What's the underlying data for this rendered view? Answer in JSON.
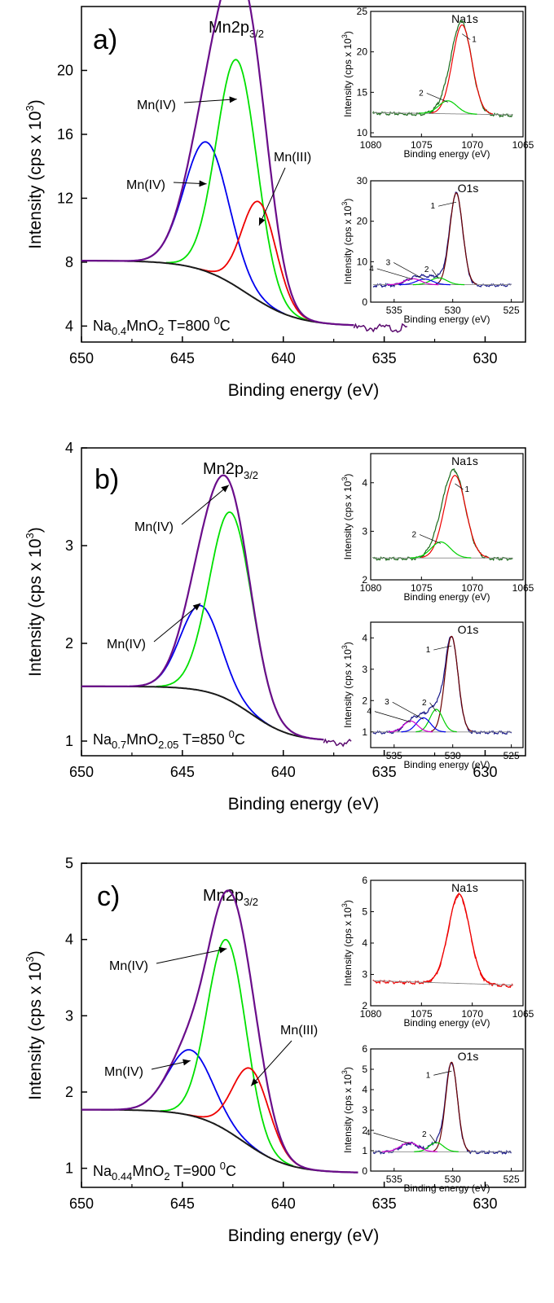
{
  "figure": {
    "colors": {
      "axis": "#000000",
      "background": "#1a1a1a",
      "envelope": "#6a0d8a",
      "mn_iv_low": "#0000ee",
      "mn_iv_high": "#00e000",
      "mn_iii": "#ee0000",
      "noise": "#5a0a6e",
      "o_comp4": "#d000d0",
      "o_comp1": "#6b0000"
    }
  },
  "chart_data": [
    {
      "type": "line",
      "panel": "a)",
      "title": "Mn2p3/2",
      "title_parts": {
        "main": "Mn2p",
        "sub": "3/2"
      },
      "xlabel": "Binding energy (eV)",
      "ylabel": "Intensity (cps x 10",
      "ylabel_sup": "3",
      "ylabel_close": ")",
      "xlim": [
        650,
        628
      ],
      "ylim": [
        3,
        24
      ],
      "xticks": [
        "650",
        "645",
        "640",
        "635",
        "630"
      ],
      "yticks": [
        "4",
        "8",
        "12",
        "16",
        "20"
      ],
      "sample_label": {
        "a": "Na",
        "b": "0.4",
        "c": "MnO",
        "d": "2",
        "e": "   T=800 ",
        "f": "0",
        "g": "C"
      },
      "annotations": [
        {
          "text": "Mn(IV)",
          "target_x": 643.8,
          "target_y": 12.9
        },
        {
          "text": "Mn(IV)",
          "target_x": 642.3,
          "target_y": 18.2
        },
        {
          "text": "Mn(III)",
          "target_x": 641.2,
          "target_y": 10.3
        }
      ],
      "background": {
        "left": 8.1,
        "right": 4.0,
        "center": 641.8,
        "width": 1.25
      },
      "components": [
        {
          "name": "Mn(IV)",
          "center": 643.8,
          "height": 8.1,
          "sigma": 1.1
        },
        {
          "name": "Mn(IV)",
          "center": 642.3,
          "height": 14.2,
          "sigma": 1.0
        },
        {
          "name": "Mn(III)",
          "center": 641.2,
          "height": 6.2,
          "sigma": 0.85
        }
      ],
      "x_range": [
        650,
        636.5
      ],
      "noise_start": 636.5,
      "noise_end": 633.8
    },
    {
      "type": "line",
      "panel": "b)",
      "title": "Mn2p3/2",
      "title_parts": {
        "main": "Mn2p",
        "sub": "3/2"
      },
      "xlabel": "Binding energy (eV)",
      "ylabel": "Intensity (cps x 10",
      "ylabel_sup": "3",
      "ylabel_close": ")",
      "xlim": [
        650,
        628
      ],
      "ylim": [
        0.85,
        4.0
      ],
      "xticks": [
        "650",
        "645",
        "640",
        "635",
        "630"
      ],
      "yticks": [
        "1",
        "2",
        "3",
        "4"
      ],
      "sample_label": {
        "a": "Na",
        "b": "0.7",
        "c": "MnO",
        "d": "2.05",
        "e": "   T=850 ",
        "f": "0",
        "g": "C"
      },
      "annotations": [
        {
          "text": "Mn(IV)",
          "target_x": 642.7,
          "target_y": 3.62
        },
        {
          "text": "Mn(IV)",
          "target_x": 644.1,
          "target_y": 2.41
        }
      ],
      "background": {
        "left": 1.56,
        "right": 1.0,
        "center": 641.6,
        "width": 1.0
      },
      "components": [
        {
          "name": "Mn(IV)",
          "center": 644.1,
          "height": 0.87,
          "sigma": 1.0
        },
        {
          "name": "Mn(IV)",
          "center": 642.6,
          "height": 1.93,
          "sigma": 1.05
        }
      ],
      "x_range": [
        650,
        638.0
      ],
      "noise_start": 638.0,
      "noise_end": 636.6
    },
    {
      "type": "line",
      "panel": "c)",
      "title": "Mn2p3/2",
      "title_parts": {
        "main": "Mn2p",
        "sub": "3/2"
      },
      "xlabel": "Binding energy (eV)",
      "ylabel": "Intensity (cps x 10",
      "ylabel_sup": "3",
      "ylabel_close": ")",
      "xlim": [
        650,
        628
      ],
      "ylim": [
        0.75,
        5.0
      ],
      "xticks": [
        "650",
        "645",
        "640",
        "635",
        "630"
      ],
      "yticks": [
        "1",
        "2",
        "3",
        "4",
        "5"
      ],
      "sample_label": {
        "a": "Na",
        "b": "0.44",
        "c": "MnO",
        "d": "2",
        "e": "   T=900 ",
        "f": "0",
        "g": "C"
      },
      "annotations": [
        {
          "text": "Mn(IV)",
          "target_x": 642.8,
          "target_y": 3.88
        },
        {
          "text": "Mn(IV)",
          "target_x": 644.6,
          "target_y": 2.41
        },
        {
          "text": "Mn(III)",
          "target_x": 641.6,
          "target_y": 2.08
        }
      ],
      "background": {
        "left": 1.77,
        "right": 0.94,
        "center": 642.0,
        "width": 1.15
      },
      "components": [
        {
          "name": "Mn(IV)",
          "center": 644.6,
          "height": 0.86,
          "sigma": 1.1
        },
        {
          "name": "Mn(IV)",
          "center": 642.8,
          "height": 2.5,
          "sigma": 0.95
        },
        {
          "name": "Mn(III)",
          "center": 641.6,
          "height": 1.02,
          "sigma": 0.9
        }
      ],
      "x_range": [
        650,
        636.3
      ],
      "noise_start": 636.3,
      "noise_end": 636.3
    }
  ],
  "insets": [
    {
      "panel": "a)",
      "kind": "na",
      "title": "Na1s",
      "xlabel": "Binding energy (eV)",
      "ylabel": "Intensity (cps x 10",
      "ylabel_sup": "3",
      "ylabel_close": ")",
      "xlim": [
        1080,
        1065
      ],
      "ylim": [
        9.5,
        25
      ],
      "xticks": [
        "1080",
        "1075",
        "1070",
        "1065"
      ],
      "yticks": [
        "10",
        "15",
        "20",
        "25"
      ],
      "base": 12.5,
      "base_slope": -0.02,
      "components": [
        {
          "label": "1",
          "center": 1071.0,
          "height": 11.0,
          "sigma": 0.95,
          "color": "#ee0000"
        },
        {
          "label": "2",
          "center": 1072.4,
          "height": 1.6,
          "sigma": 0.9,
          "color": "#00d000"
        }
      ],
      "peak_labels": [
        "1",
        "2"
      ]
    },
    {
      "panel": "a)",
      "kind": "o",
      "title": "O1s",
      "xlabel": "Binding energy (eV)",
      "ylabel": "Intensity (cps x 10",
      "ylabel_sup": "3",
      "ylabel_close": ")",
      "xlim": [
        537,
        524
      ],
      "ylim": [
        0,
        30
      ],
      "xticks": [
        "535",
        "530",
        "525"
      ],
      "yticks": [
        "0",
        "10",
        "20",
        "30"
      ],
      "base": 4.3,
      "base_slope": 0.0,
      "components": [
        {
          "label": "1",
          "center": 529.7,
          "height": 22.7,
          "sigma": 0.55,
          "color": "#6b0000"
        },
        {
          "label": "2",
          "center": 531.2,
          "height": 1.7,
          "sigma": 0.7,
          "color": "#00d000"
        },
        {
          "label": "3",
          "center": 532.4,
          "height": 1.4,
          "sigma": 0.7,
          "color": "#0000ee"
        },
        {
          "label": "4",
          "center": 533.4,
          "height": 1.5,
          "sigma": 0.7,
          "color": "#d000d0"
        }
      ],
      "peak_labels": [
        "1",
        "2",
        "3",
        "4"
      ]
    },
    {
      "panel": "b)",
      "kind": "na",
      "title": "Na1s",
      "xlabel": "Binding energy (eV)",
      "ylabel": "Intensity (cps x 10",
      "ylabel_sup": "3",
      "ylabel_close": ")",
      "xlim": [
        1080,
        1065
      ],
      "ylim": [
        2.0,
        4.6
      ],
      "xticks": [
        "1080",
        "1075",
        "1070",
        "1065"
      ],
      "yticks": [
        "2",
        "3",
        "4"
      ],
      "base": 2.45,
      "base_slope": 0.0,
      "components": [
        {
          "label": "1",
          "center": 1071.7,
          "height": 1.7,
          "sigma": 1.05,
          "color": "#ee0000"
        },
        {
          "label": "2",
          "center": 1073.1,
          "height": 0.33,
          "sigma": 0.95,
          "color": "#00d000"
        }
      ],
      "peak_labels": [
        "1",
        "2"
      ]
    },
    {
      "panel": "b)",
      "kind": "o",
      "title": "O1s",
      "xlabel": "Binding energy (eV)",
      "ylabel": "Intensity (cps x 10",
      "ylabel_sup": "3",
      "ylabel_close": ")",
      "xlim": [
        537,
        524
      ],
      "ylim": [
        0.5,
        4.5
      ],
      "xticks": [
        "535",
        "530",
        "525"
      ],
      "yticks": [
        "1",
        "2",
        "3",
        "4"
      ],
      "base": 1.0,
      "base_slope": 0.0,
      "components": [
        {
          "label": "1",
          "center": 530.1,
          "height": 3.05,
          "sigma": 0.55,
          "color": "#6b0000"
        },
        {
          "label": "2",
          "center": 531.4,
          "height": 0.72,
          "sigma": 0.55,
          "color": "#00d000"
        },
        {
          "label": "3",
          "center": 532.5,
          "height": 0.45,
          "sigma": 0.6,
          "color": "#0000ee"
        },
        {
          "label": "4",
          "center": 533.6,
          "height": 0.35,
          "sigma": 0.6,
          "color": "#d000d0"
        }
      ],
      "peak_labels": [
        "1",
        "2",
        "3",
        "4"
      ]
    },
    {
      "panel": "c)",
      "kind": "na",
      "title": "Na1s",
      "xlabel": "Binding energy (eV)",
      "ylabel": "Intensity (cps x 10",
      "ylabel_sup": "3",
      "ylabel_close": ")",
      "xlim": [
        1080,
        1065
      ],
      "ylim": [
        2.0,
        6.0
      ],
      "xticks": [
        "1080",
        "1075",
        "1070",
        "1065"
      ],
      "yticks": [
        "2",
        "3",
        "4",
        "5",
        "6"
      ],
      "base": 2.8,
      "base_slope": -0.01,
      "components": [
        {
          "label": "",
          "center": 1071.3,
          "height": 2.85,
          "sigma": 1.05,
          "color": "#ee0000"
        }
      ],
      "peak_labels": []
    },
    {
      "panel": "c)",
      "kind": "o",
      "title": "O1s",
      "xlabel": "Binding energy (eV)",
      "ylabel": "Intensity (cps x 10",
      "ylabel_sup": "3",
      "ylabel_close": ")",
      "xlim": [
        537,
        524
      ],
      "ylim": [
        0,
        6
      ],
      "xticks": [
        "535",
        "530",
        "525"
      ],
      "yticks": [
        "0",
        "1",
        "2",
        "3",
        "4",
        "5",
        "6"
      ],
      "base": 0.95,
      "base_slope": 0.0,
      "components": [
        {
          "label": "1",
          "center": 530.1,
          "height": 4.4,
          "sigma": 0.5,
          "color": "#6b0000"
        },
        {
          "label": "2",
          "center": 531.4,
          "height": 0.45,
          "sigma": 0.6,
          "color": "#00d000"
        },
        {
          "label": "4",
          "center": 533.7,
          "height": 0.45,
          "sigma": 0.75,
          "color": "#d000d0"
        }
      ],
      "peak_labels": [
        "1",
        "2",
        "4"
      ]
    }
  ]
}
